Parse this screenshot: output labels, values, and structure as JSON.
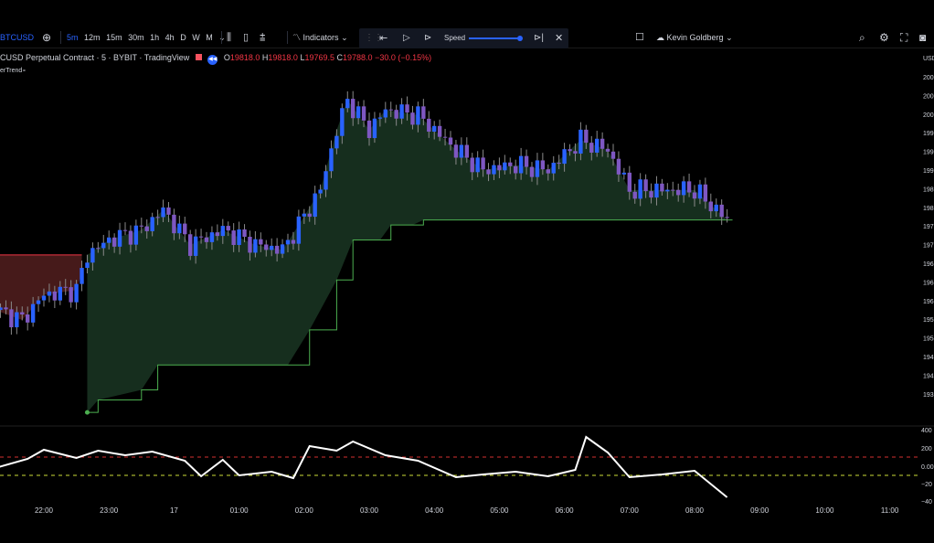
{
  "toolbar": {
    "symbol": "BTCUSD",
    "timeframes": [
      "5m",
      "12m",
      "15m",
      "30m",
      "1h",
      "4h",
      "D",
      "W",
      "M"
    ],
    "active_timeframe": "5m",
    "indicators_label": "Indicators",
    "speed_label": "Speed",
    "user_name": "Kevin Goldberg"
  },
  "legend": {
    "title": "CUSD Perpetual Contract · 5 · BYBIT · TradingView",
    "o_label": "O",
    "o_value": "19818.0",
    "h_label": "H",
    "h_value": "19818.0",
    "l_label": "L",
    "l_value": "19769.5",
    "c_label": "C",
    "c_value": "19788.0 −30.0 (−0.15%)",
    "indicator_name": "erTrend"
  },
  "chart_data": {
    "type": "candlestick",
    "x_ticks": [
      "22:00",
      "23:00",
      "17",
      "01:00",
      "02:00",
      "03:00",
      "04:00",
      "05:00",
      "06:00",
      "07:00",
      "08:00",
      "09:00",
      "10:00",
      "11:00"
    ],
    "y_ticks": [
      "200",
      "200",
      "200",
      "199",
      "199",
      "199",
      "198",
      "198",
      "197",
      "197",
      "196",
      "196",
      "196",
      "195",
      "195",
      "194",
      "194",
      "193"
    ],
    "y_unit": "USD",
    "price_trace": [
      {
        "t": "21:15",
        "p": 19620
      },
      {
        "t": "21:40",
        "p": 19600
      },
      {
        "t": "22:00",
        "p": 19650
      },
      {
        "t": "22:30",
        "p": 19660
      },
      {
        "t": "22:40",
        "p": 19730
      },
      {
        "t": "23:00",
        "p": 19760
      },
      {
        "t": "23:30",
        "p": 19780
      },
      {
        "t": "23:50",
        "p": 19820
      },
      {
        "t": "00:15",
        "p": 19750
      },
      {
        "t": "00:45",
        "p": 19780
      },
      {
        "t": "01:15",
        "p": 19750
      },
      {
        "t": "01:40",
        "p": 19740
      },
      {
        "t": "01:55",
        "p": 19790
      },
      {
        "t": "02:15",
        "p": 19860
      },
      {
        "t": "02:30",
        "p": 19980
      },
      {
        "t": "02:40",
        "p": 20040
      },
      {
        "t": "03:00",
        "p": 19980
      },
      {
        "t": "03:15",
        "p": 20020
      },
      {
        "t": "03:45",
        "p": 20010
      },
      {
        "t": "04:20",
        "p": 19940
      },
      {
        "t": "04:45",
        "p": 19900
      },
      {
        "t": "05:15",
        "p": 19910
      },
      {
        "t": "05:45",
        "p": 19900
      },
      {
        "t": "06:15",
        "p": 19960
      },
      {
        "t": "06:40",
        "p": 19940
      },
      {
        "t": "07:00",
        "p": 19860
      },
      {
        "t": "07:30",
        "p": 19860
      },
      {
        "t": "08:00",
        "p": 19860
      },
      {
        "t": "08:30",
        "p": 19800
      }
    ],
    "supertrend_up": [
      {
        "t": "22:40",
        "p": 19415
      },
      {
        "t": "22:50",
        "p": 19440
      },
      {
        "t": "23:30",
        "p": 19460
      },
      {
        "t": "23:45",
        "p": 19510
      },
      {
        "t": "01:45",
        "p": 19510
      },
      {
        "t": "02:05",
        "p": 19580
      },
      {
        "t": "02:30",
        "p": 19680
      },
      {
        "t": "02:45",
        "p": 19760
      },
      {
        "t": "03:10",
        "p": 19760
      },
      {
        "t": "03:20",
        "p": 19790
      },
      {
        "t": "03:40",
        "p": 19790
      },
      {
        "t": "03:50",
        "p": 19800
      },
      {
        "t": "08:35",
        "p": 19800
      }
    ],
    "supertrend_down": [
      {
        "t": "21:15",
        "p": 19730
      },
      {
        "t": "22:35",
        "p": 19730
      }
    ],
    "oscillator": {
      "y_ticks": [
        "400",
        "200",
        "0.00",
        "−20",
        "−40"
      ],
      "upper_level": 100,
      "lower_level": -100,
      "values": [
        {
          "t": "21:15",
          "v": -20
        },
        {
          "t": "21:45",
          "v": 80
        },
        {
          "t": "22:00",
          "v": 180
        },
        {
          "t": "22:30",
          "v": 90
        },
        {
          "t": "22:50",
          "v": 170
        },
        {
          "t": "23:15",
          "v": 120
        },
        {
          "t": "23:40",
          "v": 160
        },
        {
          "t": "00:10",
          "v": 60
        },
        {
          "t": "00:25",
          "v": -110
        },
        {
          "t": "00:45",
          "v": 70
        },
        {
          "t": "01:00",
          "v": -100
        },
        {
          "t": "01:30",
          "v": -60
        },
        {
          "t": "01:50",
          "v": -130
        },
        {
          "t": "02:05",
          "v": 220
        },
        {
          "t": "02:30",
          "v": 170
        },
        {
          "t": "02:45",
          "v": 270
        },
        {
          "t": "03:15",
          "v": 120
        },
        {
          "t": "03:45",
          "v": 60
        },
        {
          "t": "04:20",
          "v": -120
        },
        {
          "t": "04:45",
          "v": -90
        },
        {
          "t": "05:15",
          "v": -60
        },
        {
          "t": "05:45",
          "v": -110
        },
        {
          "t": "06:10",
          "v": -40
        },
        {
          "t": "06:20",
          "v": 320
        },
        {
          "t": "06:40",
          "v": 150
        },
        {
          "t": "07:00",
          "v": -120
        },
        {
          "t": "07:30",
          "v": -90
        },
        {
          "t": "08:00",
          "v": -50
        },
        {
          "t": "08:30",
          "v": -340
        }
      ]
    },
    "colors": {
      "up": "#2962ff",
      "down": "#7e57c2",
      "fill_up": "#173020",
      "fill_down": "#4a1b1b",
      "st_up": "#4caf50",
      "st_down": "#f23645",
      "osc": "#ffffff"
    }
  }
}
